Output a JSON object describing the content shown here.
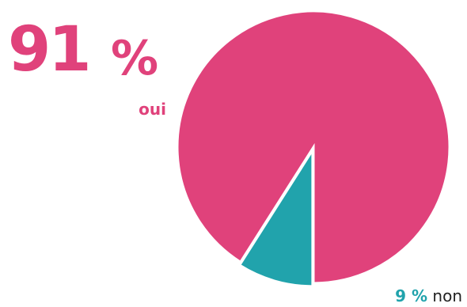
{
  "chart_data": {
    "type": "pie",
    "title": "",
    "slices": [
      {
        "label": "oui",
        "value": 91,
        "value_label": "91",
        "unit": "%",
        "color": "#e0427b"
      },
      {
        "label": "non",
        "value": 9,
        "value_label": "9 %",
        "color": "#21a3ac"
      }
    ]
  },
  "colors": {
    "pink": "#e0427b",
    "teal": "#21a3ac",
    "background": "#ffffff"
  }
}
